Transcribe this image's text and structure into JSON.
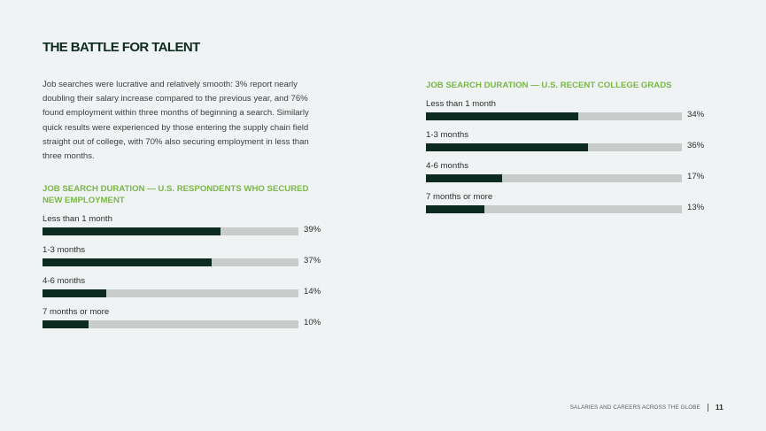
{
  "page": {
    "title": "THE BATTLE FOR TALENT",
    "intro": "Job searches were lucrative and relatively smooth: 3% report nearly doubling their salary increase compared to the previous year, and 76% found employment within three months of beginning a search. Similarly quick results were experienced by those entering the supply chain field straight out of college, with 70% also securing employment in less than three months."
  },
  "chart_data": [
    {
      "type": "bar",
      "title": "JOB SEARCH DURATION — U.S. RESPONDENTS WHO SECURED NEW EMPLOYMENT",
      "categories": [
        "Less than 1 month",
        "1-3 months",
        "4-6 months",
        "7 months or more"
      ],
      "values": [
        39,
        37,
        14,
        10
      ],
      "value_labels": [
        "39%",
        "37%",
        "14%",
        "10%"
      ],
      "unit": "%",
      "xlim": [
        0,
        56
      ],
      "colors": {
        "fill": "#0d2a21",
        "track": "#c8cccb",
        "title": "#7ab648"
      }
    },
    {
      "type": "bar",
      "title": "JOB SEARCH DURATION — U.S. RECENT COLLEGE GRADS",
      "categories": [
        "Less than 1 month",
        "1-3 months",
        "4-6 months",
        "7 months or more"
      ],
      "values": [
        34,
        36,
        17,
        13
      ],
      "value_labels": [
        "34%",
        "36%",
        "17%",
        "13%"
      ],
      "unit": "%",
      "xlim": [
        0,
        57
      ],
      "colors": {
        "fill": "#0d2a21",
        "track": "#c8cccb",
        "title": "#7ab648"
      }
    }
  ],
  "footer": {
    "text": "SALARIES AND CAREERS ACROSS THE GLOBE",
    "page_number": "11"
  }
}
